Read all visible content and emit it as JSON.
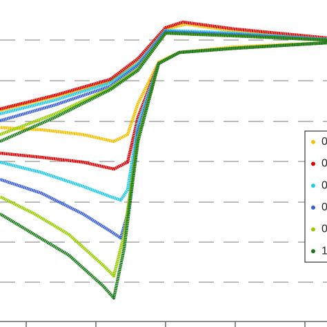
{
  "chart_data": {
    "type": "line",
    "xlim": [
      0,
      474
    ],
    "xticks": [
      38,
      139,
      240,
      341,
      442
    ],
    "ylim": [
      0,
      474
    ],
    "yticks": [
      65,
      123,
      181,
      240,
      298,
      357,
      416
    ],
    "grid": true,
    "legend": "right",
    "series": [
      {
        "name": "0",
        "color": "#f5c000",
        "x": [
          0,
          80,
          160,
          200,
          240,
          270,
          340,
          474,
          474,
          340,
          260,
          230,
          200,
          185,
          165,
          120,
          60,
          0
        ],
        "values": [
          314,
          334,
          356,
          384,
          432,
          439,
          429,
          417,
          412,
          406,
          398,
          384,
          324,
          279,
          269,
          279,
          286,
          289
        ]
      },
      {
        "name": "0",
        "color": "#e00000",
        "x": [
          0,
          80,
          160,
          200,
          240,
          265,
          340,
          474,
          474,
          340,
          260,
          230,
          200,
          185,
          165,
          120,
          60,
          0
        ],
        "values": [
          316,
          336,
          359,
          389,
          434,
          442,
          432,
          419,
          412,
          404,
          398,
          382,
          304,
          239,
          229,
          239,
          246,
          252
        ]
      },
      {
        "name": "0",
        "color": "#22c8e8",
        "x": [
          0,
          80,
          160,
          200,
          240,
          340,
          474,
          474,
          340,
          260,
          230,
          200,
          185,
          175,
          160,
          120,
          60,
          0
        ],
        "values": [
          309,
          329,
          354,
          382,
          430,
          426,
          417,
          412,
          404,
          398,
          382,
          294,
          199,
          184,
          189,
          204,
          224,
          239
        ]
      },
      {
        "name": "0",
        "color": "#3a5fd8",
        "x": [
          0,
          80,
          160,
          200,
          240,
          340,
          474,
          474,
          340,
          260,
          230,
          200,
          185,
          175,
          160,
          120,
          60,
          0
        ],
        "values": [
          299,
          322,
          349,
          379,
          428,
          424,
          416,
          412,
          404,
          398,
          382,
          284,
          164,
          129,
          139,
          164,
          194,
          214
        ]
      },
      {
        "name": "0",
        "color": "#99cc00",
        "x": [
          0,
          80,
          160,
          200,
          240,
          340,
          474,
          474,
          340,
          260,
          230,
          200,
          180,
          165,
          150,
          100,
          50,
          0
        ],
        "values": [
          279,
          309,
          346,
          374,
          426,
          422,
          416,
          412,
          404,
          398,
          382,
          274,
          134,
          74,
          89,
          134,
          164,
          189
        ]
      },
      {
        "name": "1",
        "color": "#1a7a1a",
        "x": [
          0,
          80,
          160,
          200,
          240,
          340,
          474,
          474,
          340,
          260,
          230,
          200,
          180,
          165,
          150,
          100,
          50,
          0
        ],
        "values": [
          269,
          304,
          344,
          372,
          426,
          422,
          416,
          412,
          404,
          398,
          382,
          269,
          114,
          42,
          59,
          104,
          134,
          164
        ]
      }
    ]
  }
}
